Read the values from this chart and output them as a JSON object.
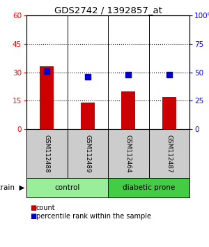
{
  "title": "GDS2742 / 1392857_at",
  "samples": [
    "GSM112488",
    "GSM112489",
    "GSM112464",
    "GSM112487"
  ],
  "counts": [
    33,
    14,
    20,
    17
  ],
  "percentiles": [
    51,
    46,
    48,
    48
  ],
  "ylim_left": [
    0,
    60
  ],
  "ylim_right": [
    0,
    100
  ],
  "yticks_left": [
    0,
    15,
    30,
    45,
    60
  ],
  "yticks_right": [
    0,
    25,
    50,
    75,
    100
  ],
  "bar_color": "#cc0000",
  "dot_color": "#0000cc",
  "groups": [
    {
      "label": "control",
      "indices": [
        0,
        1
      ],
      "color": "#99ee99"
    },
    {
      "label": "diabetic prone",
      "indices": [
        2,
        3
      ],
      "color": "#44cc44"
    }
  ],
  "sample_box_color": "#cccccc",
  "bar_width": 0.35,
  "dot_size": 30,
  "fig_width": 3.0,
  "fig_height": 3.54,
  "dpi": 100
}
